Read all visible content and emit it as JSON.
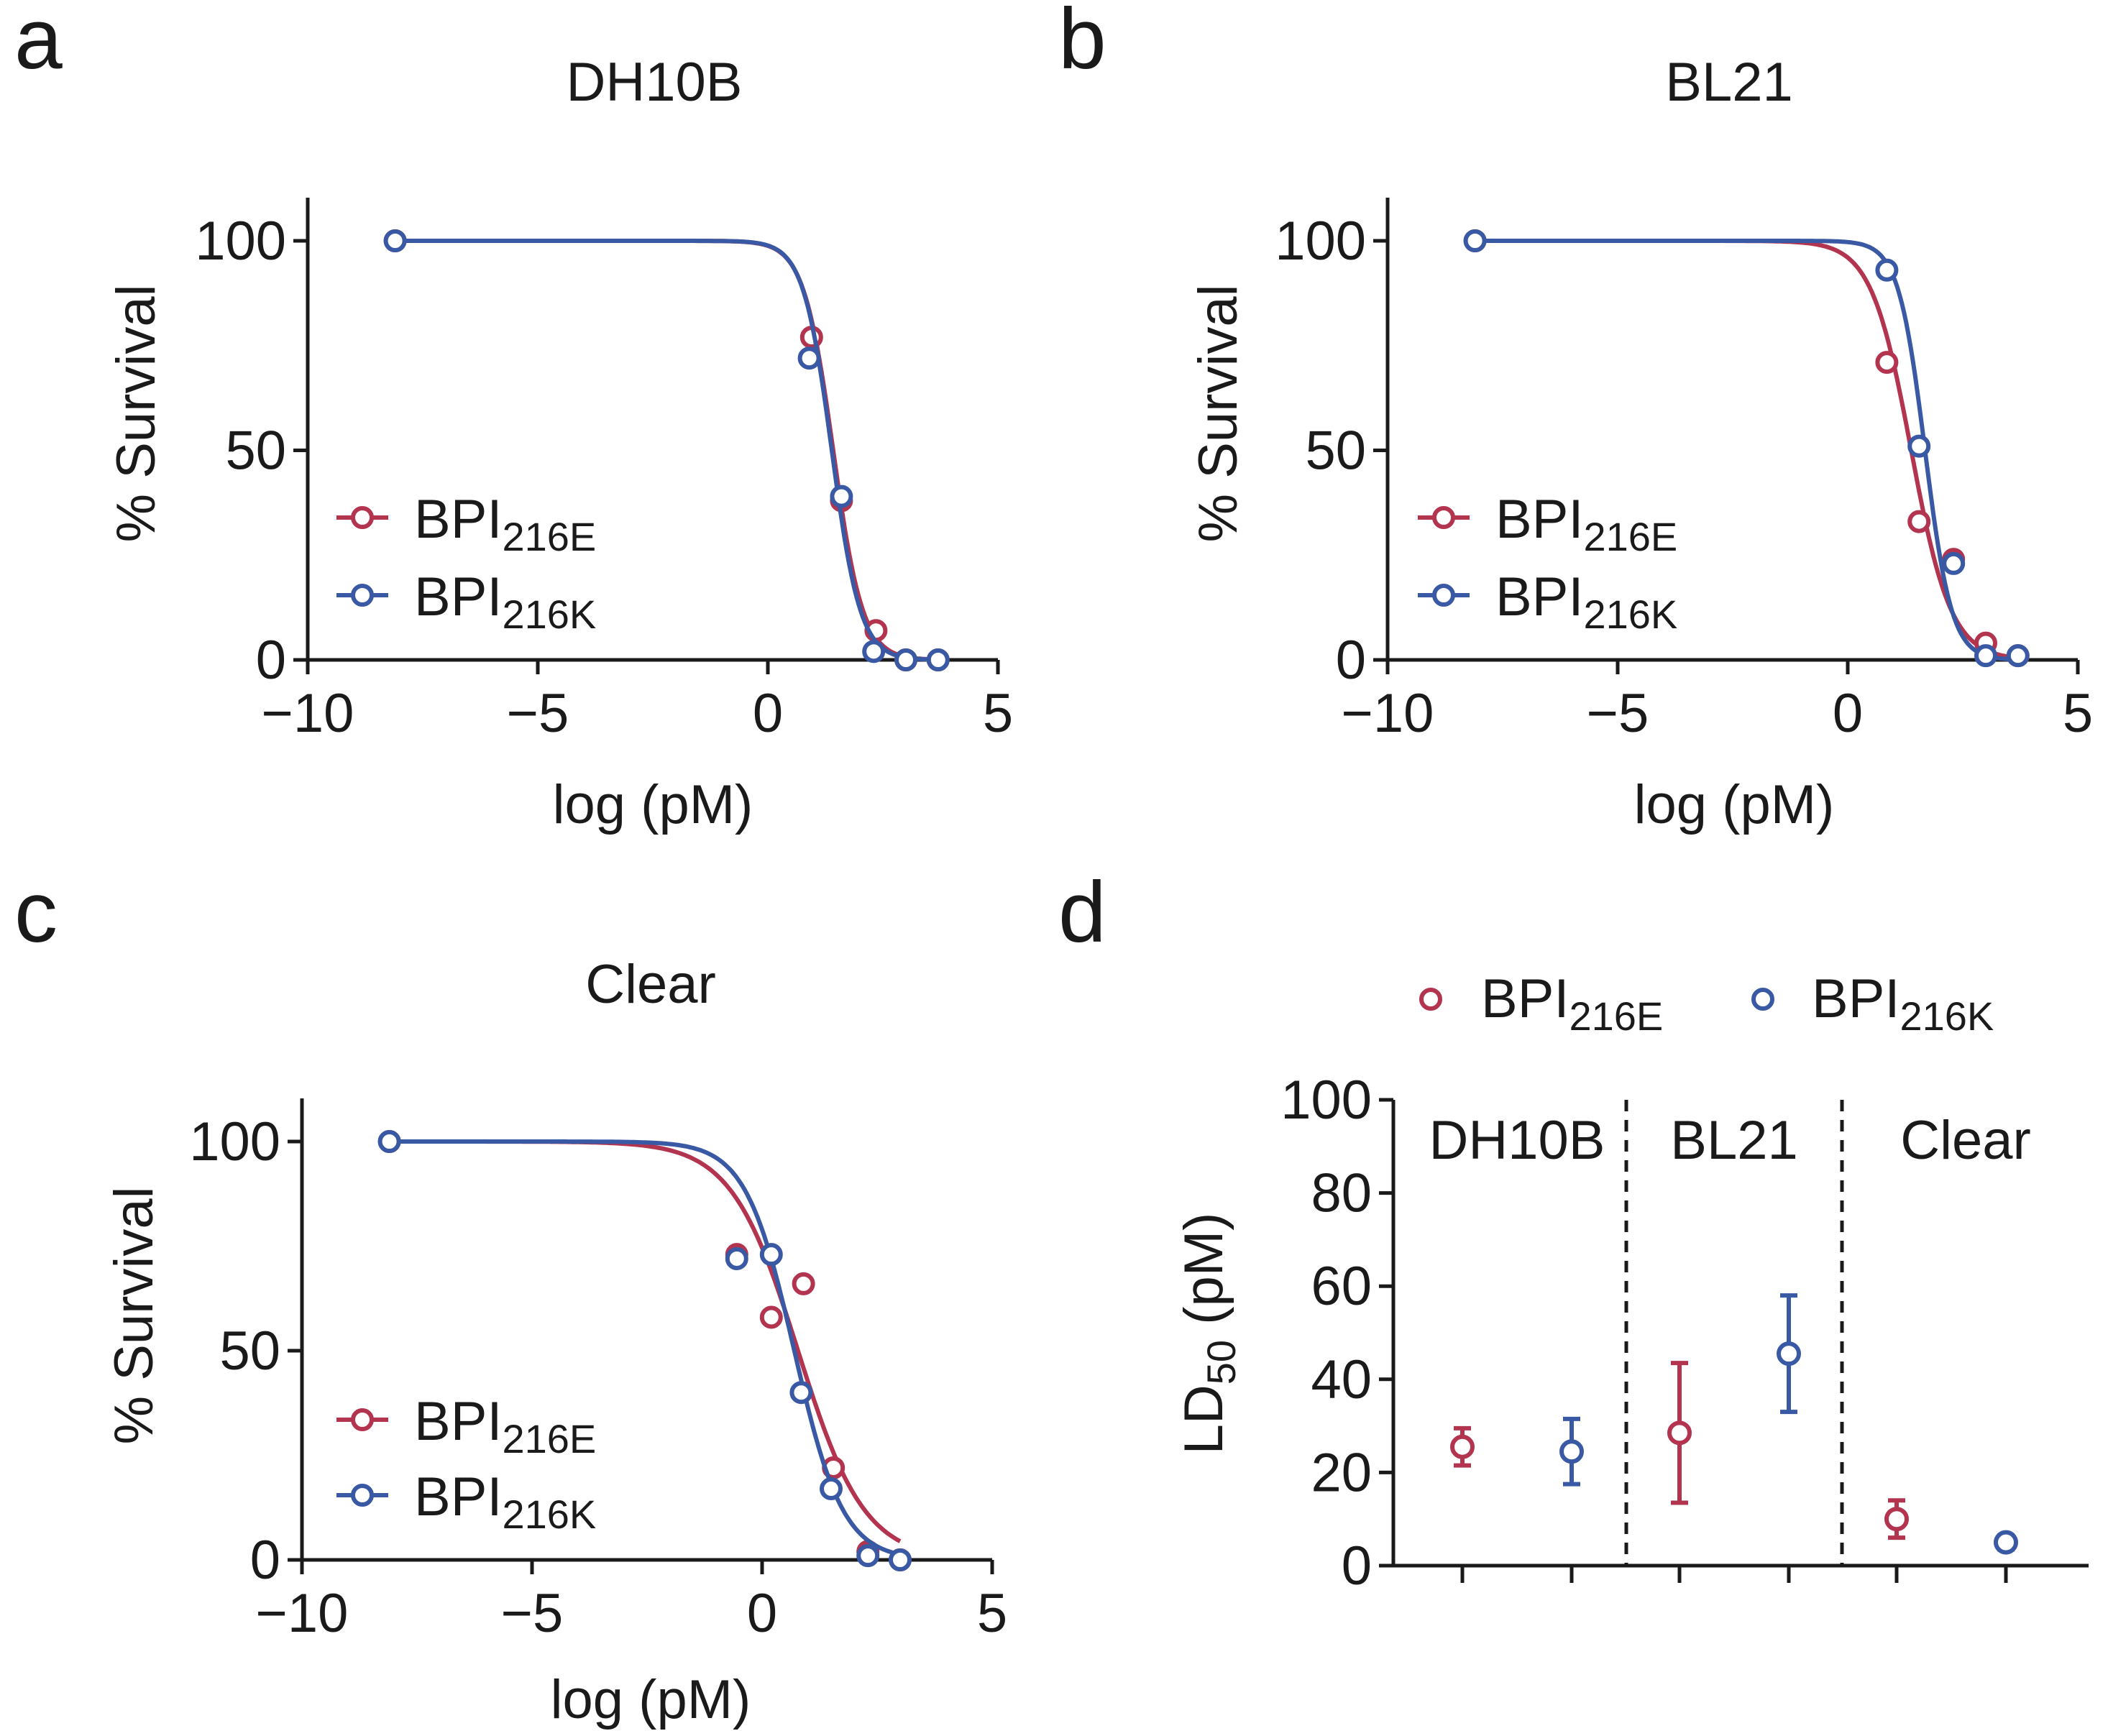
{
  "colors": {
    "e216": "#b3344f",
    "k216": "#3a59a4",
    "axis": "#1a1a1a"
  },
  "legend": {
    "e_main": "BPI",
    "e_sub": "216E",
    "k_main": "BPI",
    "k_sub": "216K"
  },
  "chart_data": [
    {
      "id": "a",
      "type": "scatter",
      "letter": "a",
      "title": "DH10B",
      "xlabel": "log (pM)",
      "ylabel": "% Survival",
      "xlim": [
        -10,
        5
      ],
      "ylim": [
        0,
        110
      ],
      "xticks": [
        -10,
        -5,
        0,
        5
      ],
      "xtick_labels": [
        "−10",
        "−5",
        "0",
        "5"
      ],
      "yticks": [
        0,
        50,
        100
      ],
      "ytick_labels": [
        "0",
        "50",
        "100"
      ],
      "series": [
        {
          "name": "BPI216E",
          "color_key": "e216",
          "points": [
            [
              -8.1,
              100
            ],
            [
              0.95,
              77
            ],
            [
              1.6,
              38
            ],
            [
              2.35,
              7
            ],
            [
              3.0,
              0
            ],
            [
              3.7,
              0
            ]
          ],
          "fit": {
            "top": 100,
            "bottom": 0,
            "logEC50": 1.42,
            "hill": 1.35
          }
        },
        {
          "name": "BPI216K",
          "color_key": "k216",
          "points": [
            [
              -8.1,
              100
            ],
            [
              0.9,
              72
            ],
            [
              1.6,
              39
            ],
            [
              2.3,
              2
            ],
            [
              3.0,
              0
            ],
            [
              3.7,
              0
            ]
          ],
          "fit": {
            "top": 100,
            "bottom": 0,
            "logEC50": 1.39,
            "hill": 1.4
          }
        }
      ]
    },
    {
      "id": "b",
      "type": "scatter",
      "letter": "b",
      "title": "BL21",
      "xlabel": "log (pM)",
      "ylabel": "% Survival",
      "xlim": [
        -10,
        5
      ],
      "ylim": [
        0,
        110
      ],
      "xticks": [
        -10,
        -5,
        0,
        5
      ],
      "xtick_labels": [
        "−10",
        "−5",
        "0",
        "5"
      ],
      "yticks": [
        0,
        50,
        100
      ],
      "ytick_labels": [
        "0",
        "50",
        "100"
      ],
      "series": [
        {
          "name": "BPI216E",
          "color_key": "e216",
          "points": [
            [
              -8.1,
              100
            ],
            [
              0.85,
              71
            ],
            [
              1.55,
              33
            ],
            [
              2.3,
              24
            ],
            [
              3.0,
              4
            ],
            [
              3.7,
              1
            ]
          ],
          "fit": {
            "top": 100,
            "bottom": 0,
            "logEC50": 1.38,
            "hill": 1.0
          }
        },
        {
          "name": "BPI216K",
          "color_key": "k216",
          "points": [
            [
              -8.1,
              100
            ],
            [
              0.85,
              93
            ],
            [
              1.55,
              51
            ],
            [
              2.3,
              23
            ],
            [
              3.0,
              1
            ],
            [
              3.7,
              1
            ]
          ],
          "fit": {
            "top": 100,
            "bottom": 0,
            "logEC50": 1.68,
            "hill": 1.5
          }
        }
      ]
    },
    {
      "id": "c",
      "type": "scatter",
      "letter": "c",
      "title": "Clear",
      "xlabel": "log (pM)",
      "ylabel": "% Survival",
      "xlim": [
        -10,
        5
      ],
      "ylim": [
        0,
        110
      ],
      "xticks": [
        -10,
        -5,
        0,
        5
      ],
      "xtick_labels": [
        "−10",
        "−5",
        "0",
        "5"
      ],
      "yticks": [
        0,
        50,
        100
      ],
      "ytick_labels": [
        "0",
        "50",
        "100"
      ],
      "series": [
        {
          "name": "BPI216E",
          "color_key": "e216",
          "points": [
            [
              -8.1,
              100
            ],
            [
              -0.55,
              73
            ],
            [
              0.2,
              58
            ],
            [
              0.9,
              66
            ],
            [
              1.55,
              22
            ],
            [
              2.3,
              2
            ],
            [
              3.0,
              0
            ]
          ],
          "fit": {
            "top": 100,
            "bottom": 0,
            "logEC50": 0.78,
            "hill": 0.6,
            "xmax": 3.0
          }
        },
        {
          "name": "BPI216K",
          "color_key": "k216",
          "points": [
            [
              -8.1,
              100
            ],
            [
              -0.55,
              72
            ],
            [
              0.2,
              73
            ],
            [
              0.85,
              40
            ],
            [
              1.5,
              17
            ],
            [
              2.3,
              1
            ],
            [
              3.0,
              0
            ]
          ],
          "fit": {
            "top": 100,
            "bottom": 0,
            "logEC50": 0.7,
            "hill": 0.82,
            "xmax": 3.0
          }
        }
      ]
    },
    {
      "id": "d",
      "type": "scatter",
      "letter": "d",
      "ylabel_main": "LD",
      "ylabel_sub": "50",
      "ylabel_tail": " (pM)",
      "ylim": [
        0,
        100
      ],
      "yticks": [
        0,
        20,
        40,
        60,
        80,
        100
      ],
      "ytick_labels": [
        "0",
        "20",
        "40",
        "60",
        "80",
        "100"
      ],
      "groups": [
        "DH10B",
        "BL21",
        "Clear"
      ],
      "points": [
        {
          "group": "DH10B",
          "series": "BPI216E",
          "color_key": "e216",
          "mean": 25.5,
          "low": 21.5,
          "high": 29.5
        },
        {
          "group": "DH10B",
          "series": "BPI216K",
          "color_key": "k216",
          "mean": 24.5,
          "low": 17.5,
          "high": 31.5
        },
        {
          "group": "BL21",
          "series": "BPI216E",
          "color_key": "e216",
          "mean": 28.5,
          "low": 13.5,
          "high": 43.5
        },
        {
          "group": "BL21",
          "series": "BPI216K",
          "color_key": "k216",
          "mean": 45.5,
          "low": 33,
          "high": 58
        },
        {
          "group": "Clear",
          "series": "BPI216E",
          "color_key": "e216",
          "mean": 10,
          "low": 6,
          "high": 14
        },
        {
          "group": "Clear",
          "series": "BPI216K",
          "color_key": "k216",
          "mean": 5,
          "low": 3.5,
          "high": 6.5
        }
      ]
    }
  ]
}
